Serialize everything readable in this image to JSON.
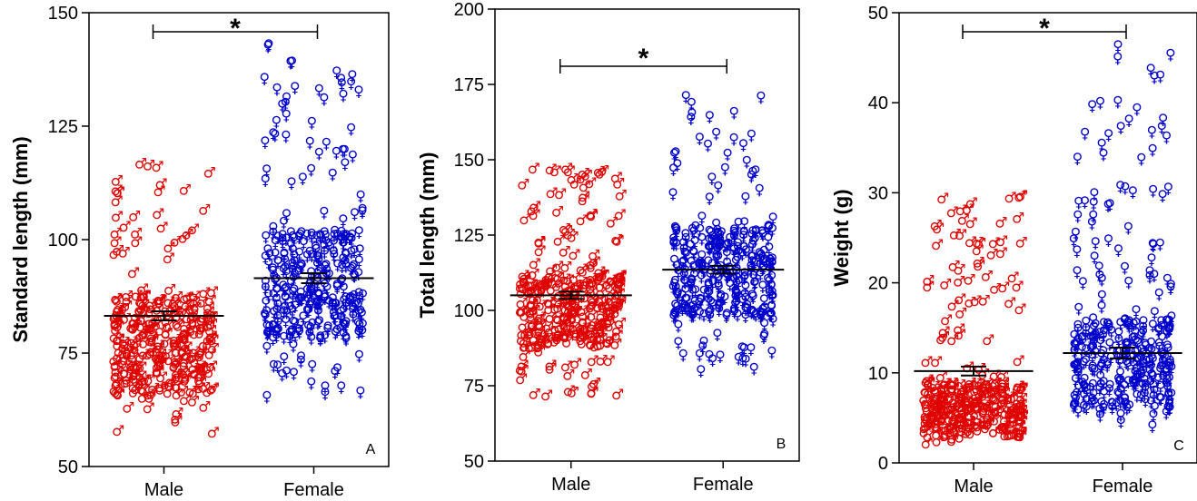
{
  "chart_data": [
    {
      "type": "scatter",
      "panel_letter": "A",
      "ylabel": "Standard length (mm)",
      "ylim": [
        50,
        150
      ],
      "yticks": [
        "50",
        "75",
        "100",
        "125",
        "150"
      ],
      "categories": [
        "Male",
        "Female"
      ],
      "significance": "*",
      "series": [
        {
          "group": "Male",
          "color": "#e00000",
          "symbol": "♂",
          "mean": 83.2,
          "sem": 1.0,
          "min": 57,
          "max": 117,
          "core_low": 66,
          "core_high": 88
        },
        {
          "group": "Female",
          "color": "#0000cc",
          "symbol": "♀",
          "mean": 91.5,
          "sem": 1.1,
          "min": 65,
          "max": 143,
          "core_low": 78,
          "core_high": 102
        }
      ]
    },
    {
      "type": "scatter",
      "panel_letter": "B",
      "ylabel": "Total length (mm)",
      "ylim": [
        50,
        200
      ],
      "yticks": [
        "50",
        "75",
        "100",
        "125",
        "150",
        "175",
        "200"
      ],
      "categories": [
        "Male",
        "Female"
      ],
      "significance": "*",
      "series": [
        {
          "group": "Male",
          "color": "#e00000",
          "symbol": "♂",
          "mean": 105,
          "sem": 1.2,
          "min": 72,
          "max": 148,
          "core_low": 88,
          "core_high": 112
        },
        {
          "group": "Female",
          "color": "#0000cc",
          "symbol": "♀",
          "mean": 113.5,
          "sem": 1.3,
          "min": 79,
          "max": 172,
          "core_low": 98,
          "core_high": 128
        }
      ]
    },
    {
      "type": "scatter",
      "panel_letter": "C",
      "ylabel": "Weight (g)",
      "ylim": [
        0,
        50
      ],
      "yticks": [
        "0",
        "10",
        "20",
        "30",
        "40",
        "50"
      ],
      "categories": [
        "Male",
        "Female"
      ],
      "significance": "*",
      "series": [
        {
          "group": "Male",
          "color": "#e00000",
          "symbol": "♂",
          "mean": 10.2,
          "sem": 0.5,
          "min": 2.2,
          "max": 30,
          "core_low": 3,
          "core_high": 9
        },
        {
          "group": "Female",
          "color": "#0000cc",
          "symbol": "♀",
          "mean": 12.2,
          "sem": 0.6,
          "min": 3.5,
          "max": 47,
          "core_low": 6,
          "core_high": 16
        }
      ]
    }
  ]
}
